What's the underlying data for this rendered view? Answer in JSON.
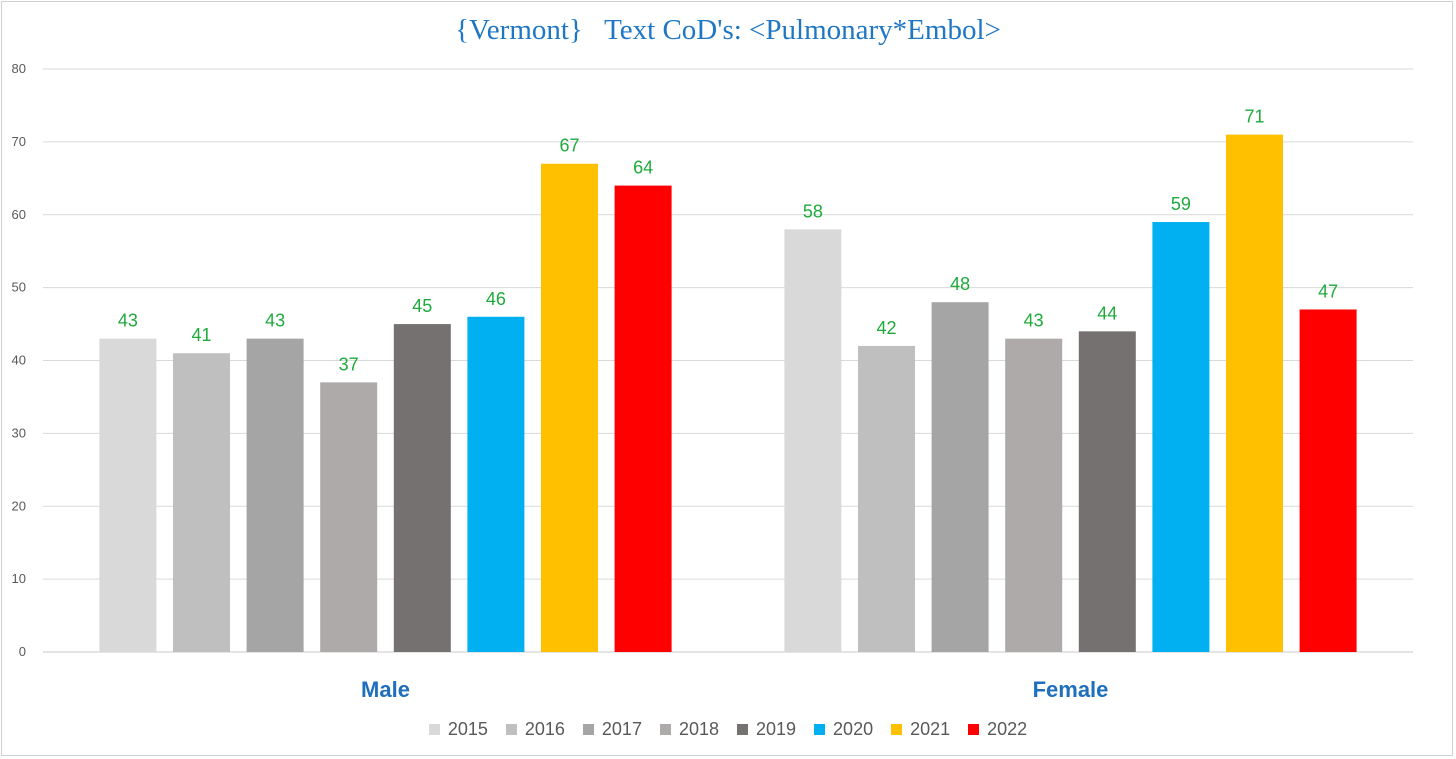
{
  "chart_data": {
    "type": "bar",
    "title": "{Vermont}   Text CoD's: <Pulmonary*Embol>",
    "categories": [
      "Male",
      "Female"
    ],
    "ylim": [
      0,
      80
    ],
    "yticks": [
      0,
      10,
      20,
      30,
      40,
      50,
      60,
      70,
      80
    ],
    "grid": true,
    "legend_position": "bottom",
    "series": [
      {
        "name": "2015",
        "color": "#d9d9d9",
        "values": [
          43,
          58
        ]
      },
      {
        "name": "2016",
        "color": "#bfbfbf",
        "values": [
          41,
          42
        ]
      },
      {
        "name": "2017",
        "color": "#a5a5a5",
        "values": [
          43,
          48
        ]
      },
      {
        "name": "2018",
        "color": "#aeaaaa",
        "values": [
          37,
          43
        ]
      },
      {
        "name": "2019",
        "color": "#767171",
        "values": [
          45,
          44
        ]
      },
      {
        "name": "2020",
        "color": "#00b0f0",
        "values": [
          46,
          59
        ]
      },
      {
        "name": "2021",
        "color": "#ffc000",
        "values": [
          67,
          71
        ]
      },
      {
        "name": "2022",
        "color": "#ff0000",
        "values": [
          64,
          47
        ]
      }
    ]
  }
}
